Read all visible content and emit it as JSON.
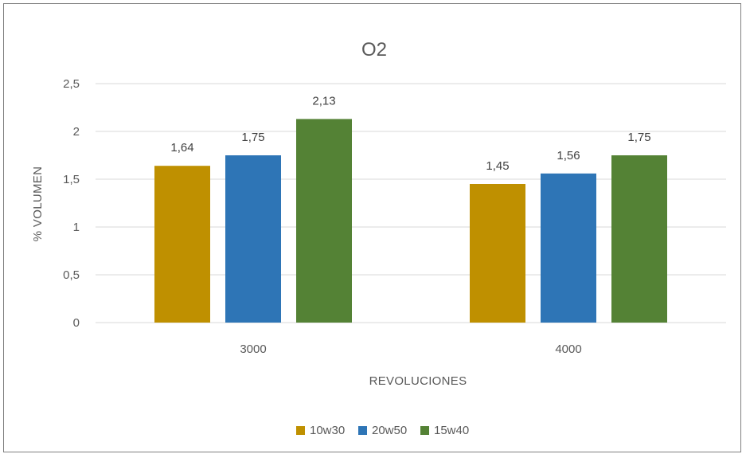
{
  "chart_data": {
    "type": "bar",
    "title": "O2",
    "xlabel": "REVOLUCIONES",
    "ylabel": "% VOLUMEN",
    "categories": [
      "3000",
      "4000"
    ],
    "series": [
      {
        "name": "10w30",
        "color": "#BF9000",
        "values": [
          1.64,
          1.45
        ],
        "labels": [
          "1,64",
          "1,45"
        ]
      },
      {
        "name": "20w50",
        "color": "#2E75B6",
        "values": [
          1.75,
          1.56
        ],
        "labels": [
          "1,75",
          "1,56"
        ]
      },
      {
        "name": "15w40",
        "color": "#548235",
        "values": [
          2.13,
          1.75
        ],
        "labels": [
          "2,13",
          "1,75"
        ]
      }
    ],
    "ylim": [
      0,
      2.5
    ],
    "yticks": [
      0,
      0.5,
      1,
      1.5,
      2,
      2.5
    ],
    "ytick_labels": [
      "0",
      "0,5",
      "1",
      "1,5",
      "2",
      "2,5"
    ],
    "grid": true,
    "legend_position": "bottom"
  }
}
